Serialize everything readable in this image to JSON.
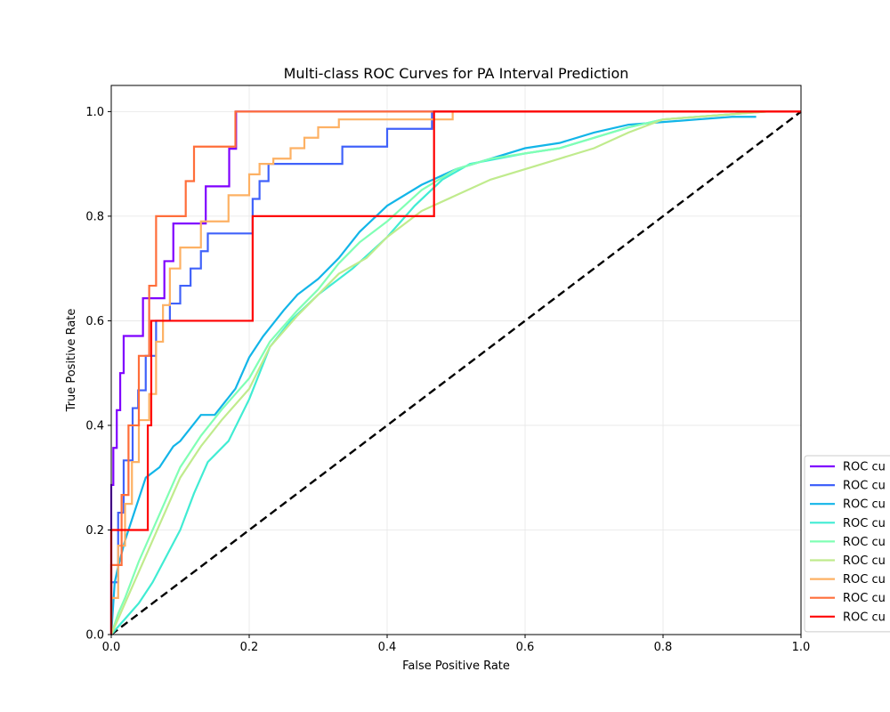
{
  "chart_data": {
    "type": "line",
    "title": "Multi-class ROC Curves for PA Interval Prediction",
    "xlabel": "False Positive Rate",
    "ylabel": "True Positive Rate",
    "xlim": [
      0.0,
      1.0
    ],
    "ylim": [
      0.0,
      1.05
    ],
    "xticks": [
      "0.0",
      "0.2",
      "0.4",
      "0.6",
      "0.8",
      "1.0"
    ],
    "yticks": [
      "0.0",
      "0.2",
      "0.4",
      "0.6",
      "0.8",
      "1.0"
    ],
    "grid": true,
    "legend_position": "lower-right, clipped at right edge",
    "diagonal": {
      "color": "#000000",
      "style": "dashed",
      "x": [
        0,
        1
      ],
      "y": [
        0,
        1
      ]
    },
    "series": [
      {
        "name": "ROC cu",
        "color": "#7f00ff",
        "x": [
          0,
          0,
          0.003,
          0.003,
          0.008,
          0.008,
          0.013,
          0.013,
          0.018,
          0.018,
          0.023,
          0.023,
          0.046,
          0.046,
          0.07,
          0.07,
          0.077,
          0.077,
          0.09,
          0.09,
          0.137,
          0.137,
          0.171,
          0.171,
          0.181,
          0.181,
          1.0
        ],
        "y": [
          0,
          0.286,
          0.286,
          0.357,
          0.357,
          0.429,
          0.429,
          0.5,
          0.5,
          0.571,
          0.571,
          0.571,
          0.571,
          0.643,
          0.643,
          0.643,
          0.643,
          0.714,
          0.714,
          0.786,
          0.786,
          0.857,
          0.857,
          0.929,
          0.929,
          1.0,
          1.0
        ]
      },
      {
        "name": "ROC cu",
        "color": "#4062fa",
        "x": [
          0,
          0,
          0.01,
          0.01,
          0.018,
          0.018,
          0.031,
          0.031,
          0.039,
          0.039,
          0.05,
          0.05,
          0.065,
          0.065,
          0.085,
          0.085,
          0.1,
          0.1,
          0.115,
          0.115,
          0.13,
          0.13,
          0.14,
          0.14,
          0.205,
          0.205,
          0.215,
          0.215,
          0.228,
          0.228,
          0.335,
          0.335,
          0.4,
          0.4,
          0.465,
          0.465,
          1.0
        ],
        "y": [
          0,
          0.1,
          0.1,
          0.233,
          0.233,
          0.333,
          0.333,
          0.433,
          0.433,
          0.467,
          0.467,
          0.533,
          0.533,
          0.6,
          0.6,
          0.633,
          0.633,
          0.667,
          0.667,
          0.7,
          0.7,
          0.733,
          0.733,
          0.767,
          0.767,
          0.833,
          0.833,
          0.867,
          0.867,
          0.9,
          0.9,
          0.933,
          0.933,
          0.967,
          0.967,
          1.0,
          1.0
        ]
      },
      {
        "name": "ROC cu",
        "color": "#12b5e8",
        "x": [
          0,
          0.005,
          0.01,
          0.02,
          0.03,
          0.05,
          0.07,
          0.09,
          0.1,
          0.13,
          0.15,
          0.18,
          0.2,
          0.22,
          0.25,
          0.27,
          0.3,
          0.33,
          0.36,
          0.4,
          0.45,
          0.5,
          0.55,
          0.6,
          0.65,
          0.7,
          0.75,
          0.8,
          0.85,
          0.9,
          0.935
        ],
        "y": [
          0,
          0.1,
          0.13,
          0.18,
          0.22,
          0.3,
          0.32,
          0.36,
          0.37,
          0.42,
          0.42,
          0.47,
          0.53,
          0.57,
          0.62,
          0.65,
          0.68,
          0.72,
          0.77,
          0.82,
          0.86,
          0.89,
          0.91,
          0.93,
          0.94,
          0.96,
          0.975,
          0.98,
          0.985,
          0.99,
          0.99
        ]
      },
      {
        "name": "ROC cu",
        "color": "#40ecd3",
        "x": [
          0,
          0.02,
          0.04,
          0.06,
          0.08,
          0.1,
          0.12,
          0.14,
          0.17,
          0.2,
          0.23,
          0.26,
          0.3,
          0.35,
          0.4,
          0.44,
          0.48,
          0.52,
          0.56,
          0.6,
          0.65,
          0.7,
          0.75,
          0.8,
          0.85,
          0.9,
          0.94
        ],
        "y": [
          0,
          0.03,
          0.06,
          0.1,
          0.15,
          0.2,
          0.27,
          0.33,
          0.37,
          0.45,
          0.55,
          0.6,
          0.65,
          0.7,
          0.76,
          0.82,
          0.87,
          0.9,
          0.91,
          0.92,
          0.93,
          0.95,
          0.97,
          0.985,
          0.99,
          0.995,
          1.0
        ]
      },
      {
        "name": "ROC cu",
        "color": "#80ffb4",
        "x": [
          0,
          0.01,
          0.02,
          0.04,
          0.06,
          0.08,
          0.1,
          0.13,
          0.16,
          0.2,
          0.23,
          0.27,
          0.3,
          0.33,
          0.36,
          0.4,
          0.45,
          0.5,
          0.55,
          0.6,
          0.65,
          0.7,
          0.75,
          0.8,
          0.85,
          0.9,
          0.95
        ],
        "y": [
          0,
          0.04,
          0.07,
          0.14,
          0.2,
          0.26,
          0.32,
          0.38,
          0.43,
          0.49,
          0.56,
          0.62,
          0.66,
          0.71,
          0.75,
          0.79,
          0.85,
          0.89,
          0.91,
          0.92,
          0.93,
          0.95,
          0.97,
          0.985,
          0.99,
          0.995,
          1.0
        ]
      },
      {
        "name": "ROC cu",
        "color": "#c0eb8d",
        "x": [
          0,
          0.01,
          0.02,
          0.04,
          0.06,
          0.08,
          0.1,
          0.13,
          0.16,
          0.2,
          0.23,
          0.27,
          0.3,
          0.33,
          0.37,
          0.4,
          0.45,
          0.5,
          0.55,
          0.6,
          0.65,
          0.7,
          0.75,
          0.8,
          0.85,
          0.9,
          0.95
        ],
        "y": [
          0,
          0.03,
          0.06,
          0.12,
          0.18,
          0.24,
          0.3,
          0.36,
          0.41,
          0.47,
          0.55,
          0.61,
          0.65,
          0.69,
          0.72,
          0.76,
          0.81,
          0.84,
          0.87,
          0.89,
          0.91,
          0.93,
          0.96,
          0.985,
          0.99,
          0.995,
          1.0
        ]
      },
      {
        "name": "ROC cu",
        "color": "#fdb164",
        "x": [
          0,
          0,
          0.01,
          0.01,
          0.02,
          0.02,
          0.03,
          0.03,
          0.04,
          0.04,
          0.055,
          0.055,
          0.065,
          0.065,
          0.075,
          0.075,
          0.085,
          0.085,
          0.1,
          0.1,
          0.13,
          0.13,
          0.17,
          0.17,
          0.2,
          0.2,
          0.215,
          0.215,
          0.235,
          0.235,
          0.26,
          0.26,
          0.28,
          0.28,
          0.3,
          0.3,
          0.33,
          0.33,
          0.495,
          0.495,
          1.0
        ],
        "y": [
          0,
          0.07,
          0.07,
          0.17,
          0.17,
          0.25,
          0.25,
          0.33,
          0.33,
          0.41,
          0.41,
          0.46,
          0.46,
          0.56,
          0.56,
          0.63,
          0.63,
          0.7,
          0.7,
          0.74,
          0.74,
          0.79,
          0.79,
          0.84,
          0.84,
          0.88,
          0.88,
          0.9,
          0.9,
          0.91,
          0.91,
          0.93,
          0.93,
          0.95,
          0.95,
          0.97,
          0.97,
          0.985,
          0.985,
          1.0,
          1.0
        ]
      },
      {
        "name": "ROC cu",
        "color": "#ff6e3a",
        "x": [
          0,
          0,
          0.015,
          0.015,
          0.025,
          0.025,
          0.04,
          0.04,
          0.055,
          0.055,
          0.065,
          0.065,
          0.07,
          0.07,
          0.108,
          0.108,
          0.12,
          0.12,
          0.18,
          0.18,
          1.0
        ],
        "y": [
          0,
          0.133,
          0.133,
          0.267,
          0.267,
          0.4,
          0.4,
          0.533,
          0.533,
          0.667,
          0.667,
          0.8,
          0.8,
          0.8,
          0.8,
          0.867,
          0.867,
          0.933,
          0.933,
          1.0,
          1.0
        ]
      },
      {
        "name": "ROC cu",
        "color": "#ff0000",
        "x": [
          0,
          0,
          0.053,
          0.053,
          0.058,
          0.058,
          0.205,
          0.205,
          0.468,
          0.468,
          1.0
        ],
        "y": [
          0,
          0.2,
          0.2,
          0.4,
          0.4,
          0.6,
          0.6,
          0.8,
          0.8,
          1.0,
          1.0
        ]
      }
    ]
  }
}
